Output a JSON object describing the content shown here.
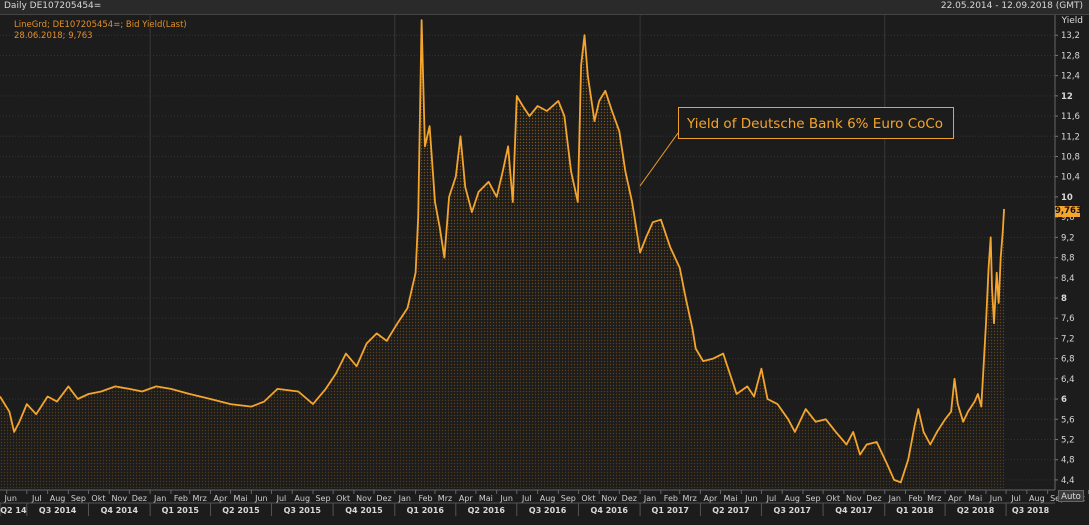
{
  "header": {
    "title": "Daily DE107205454=",
    "date_range": "22.05.2014 - 12.09.2018 (GMT)"
  },
  "legend": {
    "series_line": "LineGrd; DE107205454=; Bid Yield(Last)",
    "cursor_line": "28.06.2018; 9,763"
  },
  "annotation": "Yield of Deutsche Bank 6% Euro CoCo",
  "y_axis_title": "Yield",
  "last_value_label": "9,763",
  "auto_button": "Auto",
  "colors": {
    "line": "#f4a52e",
    "background": "#1c1c1c",
    "grid": "#3a3a3a"
  },
  "chart_data": {
    "type": "area",
    "title": "",
    "ylabel": "Yield",
    "ylim": [
      4.2,
      13.6
    ],
    "y_ticks": [
      "4,4",
      "4,8",
      "5,2",
      "5,6",
      "6",
      "6,4",
      "6,8",
      "7,2",
      "7,6",
      "8",
      "8,4",
      "8,8",
      "9,2",
      "9,6",
      "10",
      "10,4",
      "10,8",
      "11,2",
      "11,6",
      "12",
      "12,4",
      "12,8",
      "13,2"
    ],
    "month_labels": [
      "Jun",
      "Jul",
      "Aug",
      "Sep",
      "Okt",
      "Nov",
      "Dez",
      "Jan",
      "Feb",
      "Mrz",
      "Apr",
      "Mai",
      "Jun",
      "Jul",
      "Aug",
      "Sep",
      "Okt",
      "Nov",
      "Dez",
      "Jan",
      "Feb",
      "Mrz",
      "Apr",
      "Mai",
      "Jun",
      "Jul",
      "Aug",
      "Sep",
      "Okt",
      "Nov",
      "Dez",
      "Jan",
      "Feb",
      "Mrz",
      "Apr",
      "Mai",
      "Jun",
      "Jul",
      "Aug",
      "Sep",
      "Okt",
      "Nov",
      "Dez",
      "Jan",
      "Feb",
      "Mrz",
      "Apr",
      "Mai",
      "Jun",
      "Jul",
      "Aug",
      "Sep",
      "Okt",
      "Nov",
      "Dez",
      "Jan",
      "Feb",
      "Mrz",
      "Apr",
      "Mai",
      "Jun",
      "Jul",
      "Aug",
      "Sep"
    ],
    "quarter_labels": [
      "Q2 14",
      "Q3 2014",
      "Q4 2014",
      "Q1 2015",
      "Q2 2015",
      "Q3 2015",
      "Q4 2015",
      "Q1 2016",
      "Q2 2016",
      "Q3 2016",
      "Q4 2016",
      "Q1 2017",
      "Q2 2017",
      "Q3 2017",
      "Q4 2017",
      "Q1 2018",
      "Q2 2018",
      "Q3 2018"
    ],
    "series": [
      {
        "values": [
          [
            "2014-05-22",
            6.05
          ],
          [
            "2014-06-05",
            5.75
          ],
          [
            "2014-06-12",
            5.35
          ],
          [
            "2014-06-20",
            5.55
          ],
          [
            "2014-07-01",
            5.9
          ],
          [
            "2014-07-15",
            5.7
          ],
          [
            "2014-08-01",
            6.05
          ],
          [
            "2014-08-15",
            5.95
          ],
          [
            "2014-09-01",
            6.25
          ],
          [
            "2014-09-15",
            6.0
          ],
          [
            "2014-10-01",
            6.1
          ],
          [
            "2014-10-20",
            6.15
          ],
          [
            "2014-11-10",
            6.25
          ],
          [
            "2014-12-01",
            6.2
          ],
          [
            "2014-12-20",
            6.15
          ],
          [
            "2015-01-10",
            6.25
          ],
          [
            "2015-02-01",
            6.2
          ],
          [
            "2015-03-01",
            6.1
          ],
          [
            "2015-04-01",
            6.0
          ],
          [
            "2015-05-01",
            5.9
          ],
          [
            "2015-06-01",
            5.85
          ],
          [
            "2015-06-20",
            5.95
          ],
          [
            "2015-07-10",
            6.2
          ],
          [
            "2015-08-10",
            6.15
          ],
          [
            "2015-09-01",
            5.9
          ],
          [
            "2015-09-20",
            6.2
          ],
          [
            "2015-10-05",
            6.5
          ],
          [
            "2015-10-20",
            6.9
          ],
          [
            "2015-11-05",
            6.65
          ],
          [
            "2015-11-20",
            7.1
          ],
          [
            "2015-12-05",
            7.3
          ],
          [
            "2015-12-20",
            7.15
          ],
          [
            "2016-01-05",
            7.5
          ],
          [
            "2016-01-20",
            7.8
          ],
          [
            "2016-02-01",
            8.5
          ],
          [
            "2016-02-05",
            9.6
          ],
          [
            "2016-02-10",
            13.5
          ],
          [
            "2016-02-15",
            11.0
          ],
          [
            "2016-02-22",
            11.4
          ],
          [
            "2016-03-01",
            9.9
          ],
          [
            "2016-03-08",
            9.4
          ],
          [
            "2016-03-15",
            8.8
          ],
          [
            "2016-03-22",
            10.0
          ],
          [
            "2016-04-01",
            10.4
          ],
          [
            "2016-04-08",
            11.2
          ],
          [
            "2016-04-15",
            10.2
          ],
          [
            "2016-04-25",
            9.7
          ],
          [
            "2016-05-05",
            10.1
          ],
          [
            "2016-05-20",
            10.3
          ],
          [
            "2016-06-01",
            10.0
          ],
          [
            "2016-06-10",
            10.5
          ],
          [
            "2016-06-18",
            11.0
          ],
          [
            "2016-06-25",
            9.9
          ],
          [
            "2016-07-01",
            12.0
          ],
          [
            "2016-07-10",
            11.8
          ],
          [
            "2016-07-20",
            11.6
          ],
          [
            "2016-08-01",
            11.8
          ],
          [
            "2016-08-15",
            11.7
          ],
          [
            "2016-09-01",
            11.9
          ],
          [
            "2016-09-10",
            11.6
          ],
          [
            "2016-09-20",
            10.5
          ],
          [
            "2016-09-30",
            9.9
          ],
          [
            "2016-10-05",
            12.6
          ],
          [
            "2016-10-10",
            13.2
          ],
          [
            "2016-10-15",
            12.4
          ],
          [
            "2016-10-25",
            11.5
          ],
          [
            "2016-11-01",
            11.9
          ],
          [
            "2016-11-10",
            12.1
          ],
          [
            "2016-11-20",
            11.7
          ],
          [
            "2016-12-01",
            11.3
          ],
          [
            "2016-12-10",
            10.5
          ],
          [
            "2016-12-20",
            9.9
          ],
          [
            "2017-01-01",
            8.9
          ],
          [
            "2017-01-10",
            9.2
          ],
          [
            "2017-01-20",
            9.5
          ],
          [
            "2017-02-01",
            9.55
          ],
          [
            "2017-02-15",
            9.0
          ],
          [
            "2017-03-01",
            8.6
          ],
          [
            "2017-03-10",
            8.0
          ],
          [
            "2017-03-20",
            7.4
          ],
          [
            "2017-03-25",
            7.0
          ],
          [
            "2017-04-05",
            6.75
          ],
          [
            "2017-04-20",
            6.8
          ],
          [
            "2017-05-05",
            6.9
          ],
          [
            "2017-05-15",
            6.5
          ],
          [
            "2017-05-25",
            6.1
          ],
          [
            "2017-06-10",
            6.25
          ],
          [
            "2017-06-20",
            6.05
          ],
          [
            "2017-07-01",
            6.6
          ],
          [
            "2017-07-10",
            6.0
          ],
          [
            "2017-07-25",
            5.9
          ],
          [
            "2017-08-10",
            5.6
          ],
          [
            "2017-08-20",
            5.35
          ],
          [
            "2017-09-05",
            5.8
          ],
          [
            "2017-09-20",
            5.55
          ],
          [
            "2017-10-05",
            5.6
          ],
          [
            "2017-10-20",
            5.35
          ],
          [
            "2017-11-05",
            5.1
          ],
          [
            "2017-11-15",
            5.35
          ],
          [
            "2017-11-25",
            4.9
          ],
          [
            "2017-12-05",
            5.1
          ],
          [
            "2017-12-20",
            5.15
          ],
          [
            "2018-01-05",
            4.7
          ],
          [
            "2018-01-15",
            4.4
          ],
          [
            "2018-01-25",
            4.35
          ],
          [
            "2018-02-05",
            4.8
          ],
          [
            "2018-02-15",
            5.5
          ],
          [
            "2018-02-20",
            5.8
          ],
          [
            "2018-02-28",
            5.35
          ],
          [
            "2018-03-10",
            5.1
          ],
          [
            "2018-03-20",
            5.35
          ],
          [
            "2018-04-01",
            5.6
          ],
          [
            "2018-04-10",
            5.75
          ],
          [
            "2018-04-15",
            6.4
          ],
          [
            "2018-04-20",
            5.9
          ],
          [
            "2018-04-28",
            5.55
          ],
          [
            "2018-05-05",
            5.75
          ],
          [
            "2018-05-15",
            5.95
          ],
          [
            "2018-05-20",
            6.1
          ],
          [
            "2018-05-25",
            5.85
          ],
          [
            "2018-06-01",
            7.5
          ],
          [
            "2018-06-05",
            8.6
          ],
          [
            "2018-06-08",
            9.2
          ],
          [
            "2018-06-10",
            8.2
          ],
          [
            "2018-06-13",
            7.5
          ],
          [
            "2018-06-17",
            8.5
          ],
          [
            "2018-06-20",
            7.9
          ],
          [
            "2018-06-23",
            8.8
          ],
          [
            "2018-06-26",
            9.3
          ],
          [
            "2018-06-28",
            9.763
          ]
        ]
      }
    ]
  }
}
